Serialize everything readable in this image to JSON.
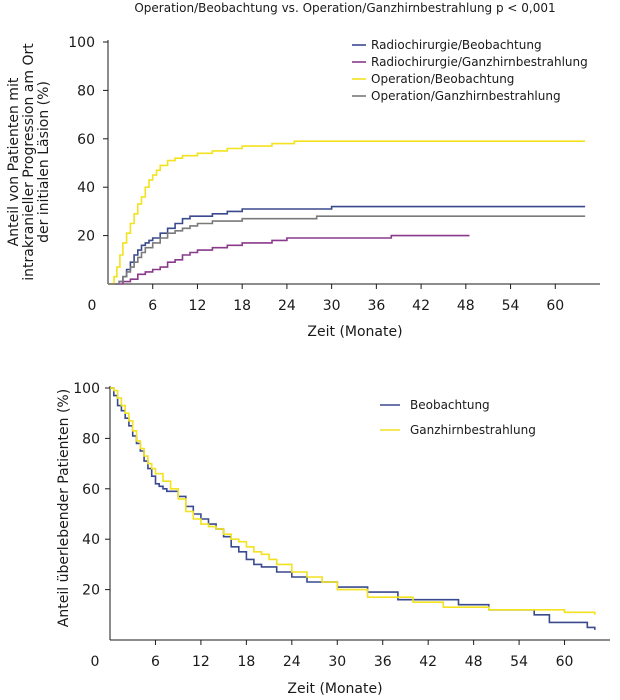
{
  "figure_title": "Operation/Beobachtung vs. Operation/Ganzhirnbestrahlung p < 0,001",
  "chart_data": [
    {
      "type": "line",
      "title": "Operation/Beobachtung vs. Operation/Ganzhirnbestrahlung p < 0,001",
      "xlabel": "Zeit (Monate)",
      "ylabel_lines": [
        "Anteil von Patienten mit",
        "intrakranieller Progression am Ort",
        "der initialen Läsion (%)"
      ],
      "xlim": [
        0,
        66
      ],
      "ylim": [
        0,
        100
      ],
      "x_ticks": [
        "0",
        "6",
        "12",
        "18",
        "24",
        "30",
        "36",
        "42",
        "48",
        "54",
        "60"
      ],
      "y_ticks": [
        "100",
        "80",
        "60",
        "40",
        "20"
      ],
      "legend_position": "top-right",
      "series": [
        {
          "name": "Radiochirurgie/Beobachtung",
          "color": "#3a4a8f",
          "x": [
            0,
            1.5,
            2,
            2.5,
            3,
            3.5,
            4,
            4.5,
            5,
            5.5,
            6,
            7,
            8,
            9,
            10,
            11,
            12,
            14,
            16,
            18,
            24,
            30,
            36,
            48,
            64
          ],
          "y": [
            0,
            1,
            3,
            6,
            9,
            12,
            14,
            16,
            17,
            18,
            19,
            21,
            23,
            25,
            27,
            28,
            28,
            29,
            30,
            31,
            31,
            32,
            32,
            32,
            32
          ]
        },
        {
          "name": "Radiochirurgie/Ganzhirnbestrahlung",
          "color": "#8a3a8a",
          "x": [
            0,
            2,
            3,
            4,
            5,
            6,
            7,
            8,
            9,
            10,
            11,
            12,
            14,
            16,
            18,
            20,
            22,
            24,
            26,
            38,
            48.5
          ],
          "y": [
            0,
            1,
            2,
            4,
            5,
            6,
            7,
            9,
            10,
            12,
            13,
            14,
            15,
            16,
            17,
            17,
            18,
            19,
            19,
            20,
            20
          ]
        },
        {
          "name": "Operation/Beobachtung",
          "color": "#f2e21f",
          "x": [
            0,
            0.8,
            1.2,
            1.6,
            2,
            2.5,
            3,
            3.5,
            4,
            4.5,
            5,
            5.5,
            6,
            6.5,
            7,
            8,
            9,
            10,
            11,
            12,
            14,
            16,
            18,
            20,
            22,
            25,
            28,
            35,
            45,
            64
          ],
          "y": [
            0,
            3,
            7,
            12,
            17,
            21,
            25,
            29,
            33,
            36,
            40,
            43,
            45,
            47,
            49,
            51,
            52,
            53,
            53,
            54,
            55,
            56,
            57,
            57,
            58,
            59,
            59,
            59,
            59,
            59
          ]
        },
        {
          "name": "Operation/Ganzhirnbestrahlung",
          "color": "#7a7a7a",
          "x": [
            0,
            1.5,
            2,
            2.5,
            3,
            3.5,
            4,
            4.5,
            5,
            6,
            7,
            8,
            9,
            10,
            11,
            12,
            14,
            18,
            24,
            28,
            40,
            64
          ],
          "y": [
            0,
            1,
            3,
            5,
            7,
            9,
            11,
            13,
            15,
            17,
            19,
            21,
            22,
            23,
            24,
            25,
            26,
            27,
            27,
            28,
            28,
            28
          ]
        }
      ]
    },
    {
      "type": "line",
      "title": "",
      "xlabel": "Zeit (Monate)",
      "ylabel": "Anteil überlebender Patienten (%)",
      "xlim": [
        0,
        66
      ],
      "ylim": [
        0,
        100
      ],
      "x_ticks": [
        "0",
        "6",
        "12",
        "18",
        "24",
        "30",
        "36",
        "42",
        "48",
        "54",
        "60"
      ],
      "y_ticks": [
        "100",
        "80",
        "60",
        "40",
        "20"
      ],
      "legend_position": "top-right",
      "series": [
        {
          "name": "Beobachtung",
          "color": "#3a4a8f",
          "x": [
            0,
            0.5,
            1,
            1.5,
            2,
            2.5,
            3,
            3.5,
            4,
            4.5,
            5,
            5.5,
            6,
            6.5,
            7,
            7.5,
            8,
            9,
            10,
            11,
            12,
            13,
            14,
            15,
            16,
            17,
            18,
            19,
            20,
            22,
            24,
            26,
            30,
            34,
            38,
            46,
            50,
            56,
            58,
            63,
            64
          ],
          "y": [
            100,
            97,
            93,
            91,
            88,
            85,
            81,
            78,
            75,
            71,
            68,
            65,
            62,
            61,
            60,
            59,
            59,
            57,
            53,
            50,
            48,
            46,
            44,
            41,
            37,
            35,
            32,
            30,
            29,
            27,
            25,
            23,
            21,
            19,
            16,
            14,
            12,
            10,
            7,
            5,
            4
          ]
        },
        {
          "name": "Ganzhirnbestrahlung",
          "color": "#f2e21f",
          "x": [
            0,
            0.5,
            1,
            1.5,
            2,
            2.5,
            3,
            3.5,
            4,
            4.5,
            5,
            5.5,
            6,
            7,
            8,
            9,
            10,
            11,
            12,
            13,
            14,
            15,
            16,
            17,
            18,
            19,
            20,
            21,
            22,
            24,
            26,
            28,
            30,
            34,
            40,
            44,
            50,
            55,
            60,
            62,
            64
          ],
          "y": [
            100,
            99,
            96,
            93,
            90,
            87,
            83,
            79,
            76,
            73,
            70,
            68,
            66,
            63,
            60,
            56,
            51,
            48,
            46,
            45,
            44,
            42,
            40,
            39,
            37,
            35,
            34,
            32,
            30,
            27,
            25,
            23,
            20,
            17,
            15,
            13,
            12,
            12,
            11,
            11,
            10
          ]
        }
      ]
    }
  ]
}
